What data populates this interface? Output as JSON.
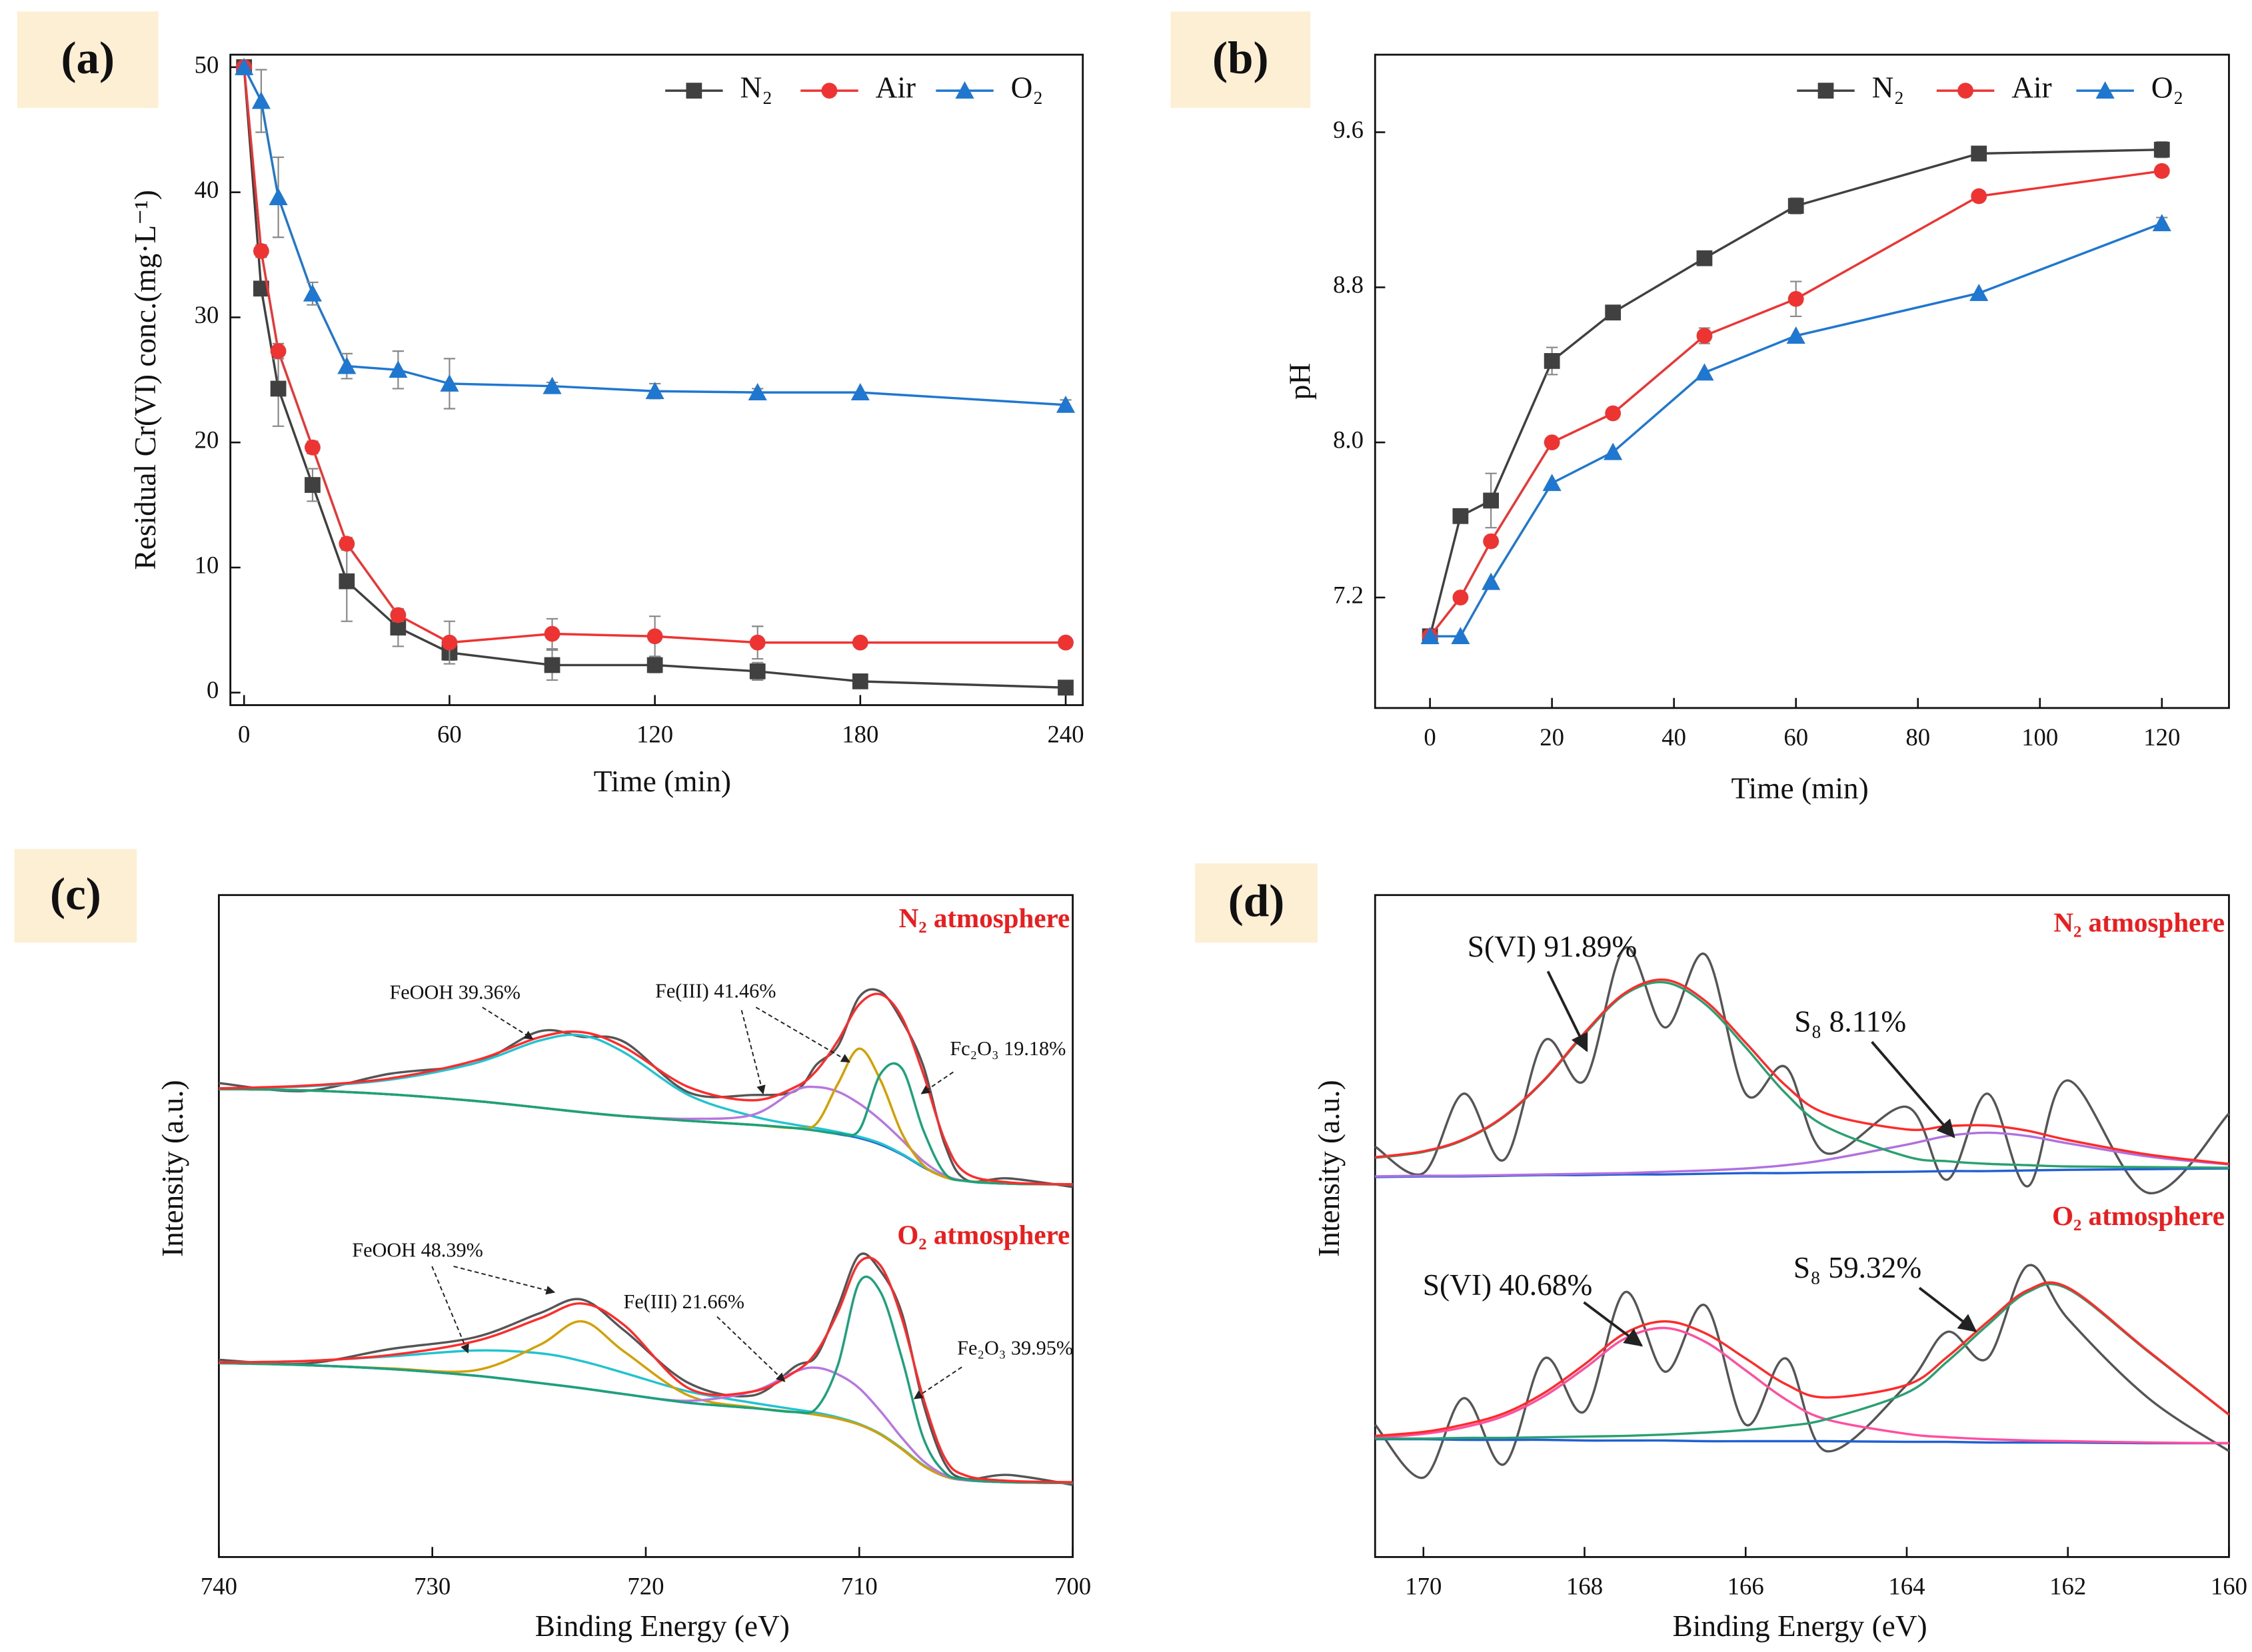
{
  "chart_data": [
    {
      "type": "line",
      "panel_label": "(a)",
      "xlabel": "Time (min)",
      "ylabel": "Residual Cr(VI) conc.(mg·L⁻¹)",
      "x": [
        0,
        5,
        10,
        20,
        30,
        45,
        60,
        90,
        120,
        150,
        180,
        240
      ],
      "series": [
        {
          "name": "N₂",
          "color": "#404040",
          "marker": "square",
          "values": [
            50,
            32.3,
            24.3,
            16.6,
            8.9,
            5.2,
            3.2,
            2.2,
            2.2,
            1.7,
            0.9,
            0.4
          ],
          "errors": [
            0,
            0.5,
            3,
            1.3,
            3.2,
            1.5,
            0.6,
            1.2,
            0.6,
            0.7,
            0,
            0.3
          ]
        },
        {
          "name": "Air",
          "color": "#ee3333",
          "marker": "circle",
          "values": [
            50,
            35.3,
            27.3,
            19.6,
            11.9,
            6.2,
            4.0,
            4.7,
            4.5,
            4.0,
            4.0,
            4.0
          ],
          "errors": [
            0,
            0.5,
            0.6,
            0.5,
            0.5,
            0.5,
            1.7,
            1.2,
            1.6,
            1.3,
            0,
            0.2
          ]
        },
        {
          "name": "O₂",
          "color": "#1f77d0",
          "marker": "triangle",
          "values": [
            50,
            47.3,
            39.6,
            31.9,
            26.1,
            25.8,
            24.7,
            24.5,
            24.1,
            24.0,
            24.0,
            23.0
          ],
          "errors": [
            0,
            2.5,
            3.2,
            0.9,
            1,
            1.5,
            2,
            0.3,
            0.6,
            0.3,
            0,
            0.4
          ]
        }
      ],
      "xlim": [
        -4,
        245
      ],
      "ylim": [
        -1,
        51
      ],
      "xticks": [
        0,
        60,
        120,
        180,
        240
      ],
      "yticks": [
        0,
        10,
        20,
        30,
        40,
        50
      ],
      "legend": "upper right"
    },
    {
      "type": "line",
      "panel_label": "(b)",
      "xlabel": "Time (min)",
      "ylabel": "pH",
      "x": [
        0,
        5,
        10,
        20,
        30,
        45,
        60,
        90,
        120
      ],
      "series": [
        {
          "name": "N₂",
          "color": "#404040",
          "marker": "square",
          "values": [
            7.0,
            7.62,
            7.7,
            8.42,
            8.67,
            8.95,
            9.22,
            9.49,
            9.51
          ],
          "errors": [
            0,
            0,
            0.14,
            0.07,
            0,
            0,
            0.04,
            0,
            0.04
          ]
        },
        {
          "name": "Air",
          "color": "#ee3333",
          "marker": "circle",
          "values": [
            7.0,
            7.2,
            7.49,
            8.0,
            8.15,
            8.55,
            8.74,
            9.27,
            9.4
          ],
          "errors": [
            0,
            0,
            0,
            0,
            0,
            0.04,
            0.09,
            0,
            0
          ]
        },
        {
          "name": "O₂",
          "color": "#1f77d0",
          "marker": "triangle",
          "values": [
            7.0,
            7.0,
            7.28,
            7.79,
            7.95,
            8.36,
            8.55,
            8.77,
            9.13
          ],
          "errors": [
            0,
            0,
            0,
            0,
            0,
            0,
            0,
            0,
            0.03
          ]
        }
      ],
      "xlim": [
        -9,
        131
      ],
      "ylim": [
        6.63,
        10.0
      ],
      "xticks": [
        0,
        20,
        40,
        60,
        80,
        100,
        120
      ],
      "yticks": [
        7.2,
        {
          "value": 8,
          "label": "8.0"
        },
        8.8,
        9.6
      ],
      "legend": "upper right"
    },
    {
      "type": "spectrum",
      "panel_label": "(c)",
      "xlabel": "Binding Energy (eV)",
      "ylabel": "Intensity (a.u.)",
      "x": [
        740,
        736,
        732,
        728,
        725,
        723,
        721,
        718,
        715,
        713,
        712,
        711,
        710,
        709,
        708,
        707,
        706,
        705,
        703,
        700
      ],
      "series": [
        {
          "color": "#555555",
          "values": [
            71.6,
            70.4,
            73.0,
            74.6,
            79.4,
            78.6,
            77.8,
            70.2,
            69.8,
            70.4,
            74.4,
            77.2,
            84.6,
            85.4,
            81.0,
            74.2,
            62.4,
            57.0,
            57.2,
            55.9
          ]
        },
        {
          "color": "#2060d0",
          "values": [
            70.7,
            70.5,
            69.9,
            68.9,
            67.9,
            67.2,
            66.6,
            65.9,
            65.3,
            64.8,
            64.4,
            63.9,
            63.3,
            62.3,
            60.8,
            58.9,
            57.4,
            56.8,
            56.4,
            56.3
          ]
        },
        {
          "color": "#22c3d0",
          "values": [
            70.8,
            71.1,
            72.1,
            74.6,
            78.0,
            78.8,
            76.2,
            69.8,
            66.6,
            65.3,
            64.8,
            64.2,
            63.5,
            62.5,
            60.9,
            59.0,
            57.4,
            56.8,
            56.4,
            56.3
          ]
        },
        {
          "color": "#b877e0",
          "values": [
            70.7,
            70.5,
            69.9,
            68.9,
            67.9,
            67.2,
            66.6,
            66.2,
            66.8,
            70.5,
            71.0,
            70.3,
            68.5,
            66.0,
            63.0,
            59.8,
            57.7,
            56.8,
            56.4,
            56.3
          ]
        },
        {
          "color": "#d4a000",
          "values": [
            70.7,
            70.5,
            69.9,
            68.9,
            67.9,
            67.2,
            66.6,
            65.9,
            65.3,
            64.8,
            65.5,
            71.5,
            76.8,
            72.0,
            64.0,
            59.2,
            57.4,
            56.8,
            56.4,
            56.3
          ]
        },
        {
          "color": "#1aa37a",
          "values": [
            70.7,
            70.5,
            69.9,
            68.9,
            67.9,
            67.2,
            66.6,
            65.9,
            65.3,
            64.8,
            64.4,
            64.0,
            64.5,
            73.0,
            73.8,
            64.5,
            58.0,
            56.8,
            56.4,
            56.3
          ]
        },
        {
          "color": "#ff2a2a",
          "values": [
            70.8,
            71.2,
            72.3,
            75.0,
            78.5,
            79.3,
            77.0,
            71.0,
            69.0,
            71.0,
            73.5,
            78.0,
            83.5,
            85.0,
            81.5,
            73.0,
            63.0,
            58.0,
            56.6,
            56.3
          ]
        },
        {
          "color": "#555555",
          "values": [
            29.8,
            29.2,
            31.4,
            33.2,
            36.8,
            38.9,
            34.2,
            26.3,
            24.4,
            28.8,
            30.4,
            37.8,
            45.6,
            43.2,
            36.8,
            23.2,
            14.2,
            11.8,
            12.4,
            10.9
          ]
        },
        {
          "color": "#2060d0",
          "values": [
            29.3,
            29.0,
            28.4,
            27.4,
            26.3,
            25.5,
            24.6,
            23.3,
            22.5,
            21.9,
            21.5,
            20.9,
            20.0,
            18.5,
            16.3,
            13.8,
            12.2,
            11.6,
            11.3,
            11.2
          ]
        },
        {
          "color": "#22c3d0",
          "values": [
            29.4,
            29.6,
            30.3,
            31.2,
            30.8,
            29.6,
            27.8,
            25.0,
            23.3,
            22.3,
            21.8,
            21.1,
            20.1,
            18.6,
            16.4,
            13.9,
            12.2,
            11.6,
            11.3,
            11.2
          ]
        },
        {
          "color": "#d4a000",
          "values": [
            29.3,
            29.0,
            28.5,
            28.2,
            32.0,
            35.6,
            31.0,
            24.4,
            22.6,
            21.9,
            21.5,
            20.9,
            20.0,
            18.5,
            16.3,
            13.8,
            12.2,
            11.6,
            11.3,
            11.2
          ]
        },
        {
          "color": "#b877e0",
          "values": [
            29.3,
            29.0,
            28.4,
            27.4,
            26.3,
            25.5,
            24.6,
            23.6,
            25.0,
            28.0,
            28.6,
            27.6,
            25.5,
            22.0,
            18.0,
            14.5,
            12.4,
            11.6,
            11.3,
            11.2
          ]
        },
        {
          "color": "#1aa37a",
          "values": [
            29.3,
            29.0,
            28.4,
            27.4,
            26.3,
            25.5,
            24.6,
            23.3,
            22.5,
            21.9,
            22.5,
            29.0,
            41.5,
            40.0,
            30.0,
            18.0,
            12.8,
            11.7,
            11.3,
            11.2
          ]
        },
        {
          "color": "#ff2a2a",
          "values": [
            29.4,
            29.6,
            30.5,
            32.6,
            36.0,
            38.3,
            35.0,
            25.5,
            25.0,
            28.0,
            31.0,
            37.0,
            44.5,
            44.0,
            36.0,
            24.0,
            15.0,
            12.3,
            11.5,
            11.3
          ]
        }
      ],
      "xlim": [
        740,
        700
      ],
      "ylim": [
        0,
        100
      ],
      "xticks": [
        740,
        730,
        720,
        710,
        700
      ],
      "annotations": [
        "N₂ atmosphere",
        "FeOOH 39.36%",
        "Fe(III) 41.46%",
        "Fc₂O₃ 19.18%",
        "O₂ atmosphere",
        "FeOOH 48.39%",
        "Fe(III) 21.66%",
        "Fe₂O₃ 39.95%"
      ]
    },
    {
      "type": "spectrum",
      "panel_label": "(d)",
      "xlabel": "Binding Energy (eV)",
      "ylabel": "Intensity (a.u.)",
      "x": [
        170.6,
        170,
        169.5,
        169,
        168.5,
        168,
        167.5,
        167,
        166.5,
        166,
        165.5,
        165,
        164,
        163.5,
        163,
        162.5,
        162,
        161,
        160
      ],
      "series": [
        {
          "color": "#555555",
          "values": [
            62,
            58,
            70,
            60,
            78,
            72,
            92,
            80,
            91,
            70,
            74,
            61,
            68,
            57,
            70,
            56,
            72,
            55,
            67
          ]
        },
        {
          "color": "#2060d0",
          "values": [
            57.4,
            57.5,
            57.5,
            57.6,
            57.7,
            57.7,
            57.8,
            57.8,
            57.9,
            58.0,
            58.0,
            58.1,
            58.2,
            58.3,
            58.3,
            58.4,
            58.5,
            58.6,
            58.7
          ]
        },
        {
          "color": "#b070e0",
          "values": [
            57.5,
            57.6,
            57.6,
            57.7,
            57.8,
            57.9,
            58.0,
            58.2,
            58.4,
            58.7,
            59.2,
            60.0,
            62.3,
            63.6,
            64.1,
            63.6,
            62.5,
            60.5,
            59.3
          ]
        },
        {
          "color": "#2aa070",
          "values": [
            60.3,
            61.2,
            63.0,
            66.5,
            72.0,
            79.0,
            85.0,
            86.8,
            83.5,
            77.0,
            70.0,
            65.0,
            60.5,
            59.8,
            59.4,
            59.2,
            59.0,
            58.9,
            58.8
          ]
        },
        {
          "color": "#ff2a2a",
          "values": [
            60.4,
            61.3,
            63.1,
            66.6,
            72.1,
            79.2,
            85.2,
            87.2,
            84.0,
            77.7,
            71.2,
            67.0,
            64.6,
            65.1,
            65.2,
            64.4,
            63.0,
            60.8,
            59.4
          ]
        },
        {
          "color": "#555555",
          "values": [
            20,
            12,
            24,
            14,
            30,
            22,
            40,
            28,
            38,
            20,
            30,
            16,
            26,
            34,
            30,
            44,
            36,
            24,
            16
          ]
        },
        {
          "color": "#2060d0",
          "values": [
            17.8,
            17.8,
            17.7,
            17.7,
            17.7,
            17.6,
            17.6,
            17.6,
            17.5,
            17.5,
            17.5,
            17.5,
            17.4,
            17.4,
            17.3,
            17.3,
            17.3,
            17.2,
            17.2
          ]
        },
        {
          "color": "#ff4fa0",
          "values": [
            18.0,
            18.6,
            19.6,
            21.3,
            24.3,
            28.5,
            33.0,
            34.6,
            32.5,
            28.2,
            23.8,
            20.8,
            18.6,
            18.1,
            17.8,
            17.6,
            17.5,
            17.3,
            17.2
          ]
        },
        {
          "color": "#2aa070",
          "values": [
            17.9,
            17.9,
            18.0,
            18.0,
            18.1,
            18.2,
            18.3,
            18.5,
            18.8,
            19.2,
            19.8,
            20.8,
            24.8,
            29.5,
            35.0,
            40.0,
            40.5,
            31.0,
            21.5
          ]
        },
        {
          "color": "#ff2a2a",
          "values": [
            18.3,
            18.9,
            20.0,
            21.7,
            24.8,
            29.1,
            33.8,
            35.6,
            33.8,
            30.0,
            26.1,
            24.1,
            26.0,
            30.2,
            35.5,
            40.3,
            40.7,
            31.1,
            21.5
          ]
        }
      ],
      "xlim": [
        170.6,
        160
      ],
      "ylim": [
        0,
        100
      ],
      "xticks": [
        170,
        168,
        166,
        164,
        162,
        160
      ],
      "annotations": [
        "N₂ atmosphere",
        "S(VI) 91.89%",
        "S₈ 8.11%",
        "O₂ atmosphere",
        "S(VI) 40.68%",
        "S₈ 59.32%"
      ]
    }
  ]
}
